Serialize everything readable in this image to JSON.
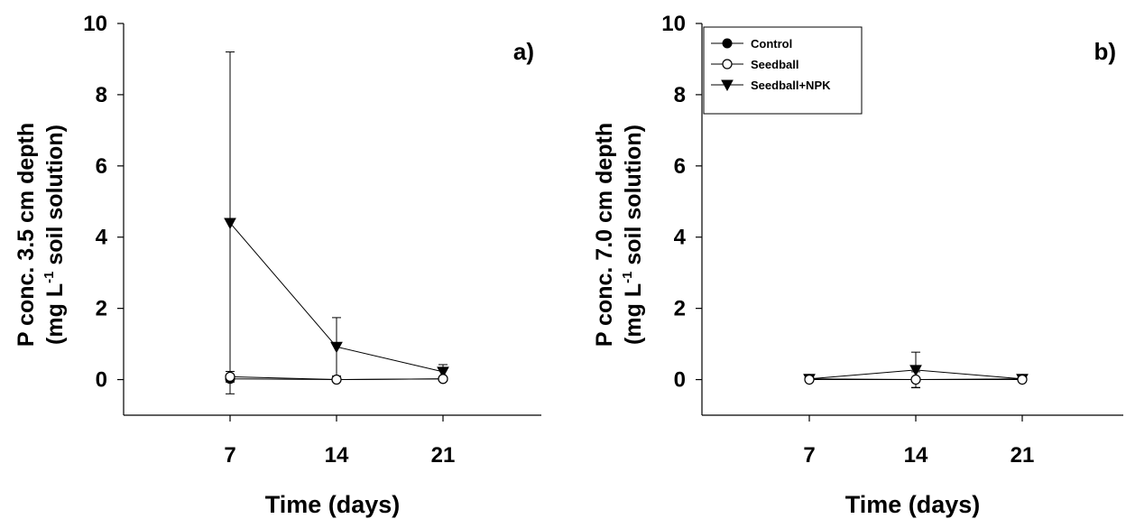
{
  "chart_data": [
    {
      "type": "line",
      "panel_label": "a)",
      "xlabel": "Time (days)",
      "ylabel_line1": "P conc. 3.5 cm depth",
      "ylabel_line2_pre": "(mg L",
      "ylabel_line2_sup": "-1",
      "ylabel_line2_post": " soil solution)",
      "x": [
        7,
        14,
        21
      ],
      "xticks": [
        "7",
        "14",
        "21"
      ],
      "yticks": [
        "0",
        "2",
        "4",
        "6",
        "8",
        "10"
      ],
      "ylim": [
        -1,
        10
      ],
      "legend": false,
      "series": [
        {
          "name": "Control",
          "marker": "filled-circle",
          "values": [
            0.02,
            0.0,
            0.02
          ],
          "err": [
            0.0,
            0.0,
            0.0
          ]
        },
        {
          "name": "Seedball",
          "marker": "open-circle",
          "values": [
            0.08,
            0.0,
            0.02
          ],
          "err": [
            0.15,
            0.0,
            0.0
          ]
        },
        {
          "name": "Seedball+NPK",
          "marker": "filled-triangle-down",
          "values": [
            4.4,
            0.92,
            0.22
          ],
          "err": [
            4.8,
            0.82,
            0.2
          ]
        }
      ]
    },
    {
      "type": "line",
      "panel_label": "b)",
      "xlabel": "Time (days)",
      "ylabel_line1": "P conc. 7.0 cm depth",
      "ylabel_line2_pre": "(mg L",
      "ylabel_line2_sup": "-1",
      "ylabel_line2_post": " soil solution)",
      "x": [
        7,
        14,
        21
      ],
      "xticks": [
        "7",
        "14",
        "21"
      ],
      "yticks": [
        "0",
        "2",
        "4",
        "6",
        "8",
        "10"
      ],
      "ylim": [
        -1,
        10
      ],
      "legend": true,
      "legend_position": "top-left",
      "series": [
        {
          "name": "Control",
          "marker": "filled-circle",
          "values": [
            0.02,
            0.0,
            0.02
          ],
          "err": [
            0.0,
            0.0,
            0.0
          ]
        },
        {
          "name": "Seedball",
          "marker": "open-circle",
          "values": [
            0.0,
            0.0,
            0.0
          ],
          "err": [
            0.0,
            0.22,
            0.0
          ]
        },
        {
          "name": "Seedball+NPK",
          "marker": "filled-triangle-down",
          "values": [
            0.02,
            0.27,
            0.02
          ],
          "err": [
            0.0,
            0.5,
            0.0
          ]
        }
      ]
    }
  ]
}
